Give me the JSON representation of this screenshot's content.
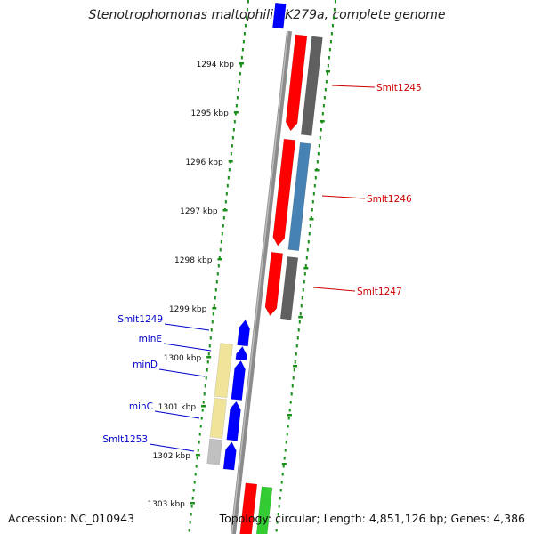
{
  "title": "Stenotrophomonas maltophilia K279a, complete genome",
  "footer": {
    "accession": "Accession: NC_010943",
    "summary": "Topology: circular; Length: 4,851,126 bp; Genes: 4,386"
  },
  "colors": {
    "backbone": "#8c8c8c",
    "tick": "#1a8f1a",
    "forward_gene": "#0000ff",
    "reverse_gene": "#ff0000",
    "label_forward": "#0000cc",
    "label_reverse": "#cc0000",
    "gray_feature": "#606060",
    "steel_feature": "#4682b4",
    "yellow_feature": "#f0e39a",
    "lightgray_feature": "#c0c0c0",
    "green_feature": "#33cc33"
  },
  "scale_labels": [
    "1294 kbp",
    "1295 kbp",
    "1296 kbp",
    "1297 kbp",
    "1298 kbp",
    "1299 kbp",
    "1300 kbp",
    "1301 kbp",
    "1302 kbp",
    "1303 kbp"
  ],
  "gene_labels": {
    "reverse": [
      "Smlt1245",
      "Smlt1246",
      "Smlt1247"
    ],
    "forward": [
      "Smlt1249",
      "minE",
      "minD",
      "minC",
      "Smlt1253"
    ]
  }
}
